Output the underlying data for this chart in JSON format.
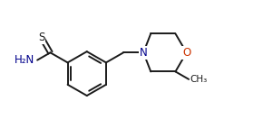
{
  "bg_color": "#ffffff",
  "bond_color": "#1a1a1a",
  "atom_colors": {
    "S": "#1a1a1a",
    "N": "#00008b",
    "O": "#cc3300",
    "C": "#1a1a1a",
    "H": "#1a1a1a"
  },
  "bond_width": 1.4,
  "font_size_atom": 8.5,
  "figsize": [
    2.9,
    1.53
  ],
  "dpi": 100,
  "xlim": [
    0.0,
    8.5
  ],
  "ylim": [
    0.5,
    4.8
  ]
}
